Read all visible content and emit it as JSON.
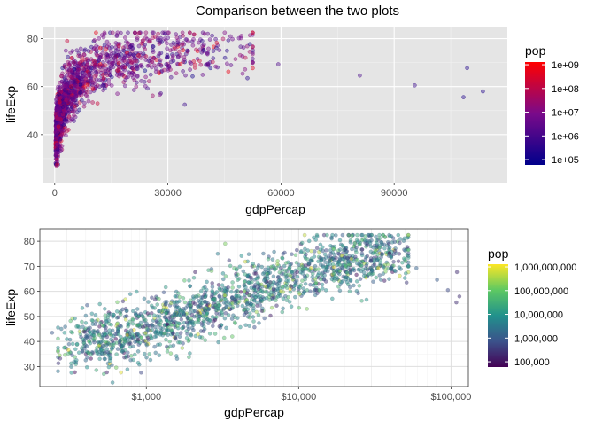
{
  "page_title": "Comparison between the two plots",
  "chart_data": [
    {
      "type": "scatter",
      "panel": "top",
      "xlabel": "gdpPercap",
      "ylabel": "lifeExp",
      "x_scale": "linear",
      "xlim": [
        -3000,
        120000
      ],
      "ylim": [
        20,
        85
      ],
      "x_ticks": [
        0,
        30000,
        60000,
        90000
      ],
      "x_tick_labels": [
        "0",
        "30000",
        "60000",
        "90000"
      ],
      "y_ticks": [
        40,
        60,
        80
      ],
      "y_tick_labels": [
        "40",
        "60",
        "80"
      ],
      "background": "#e5e5e5",
      "grid": true,
      "legend": {
        "title": "pop",
        "position": "right",
        "type": "colorbar",
        "color_low": "#00008b",
        "color_high": "#ff0000",
        "breaks": [
          100000,
          1000000,
          10000000,
          100000000,
          1000000000
        ],
        "labels": [
          "1e+05",
          "1e+06",
          "1e+07",
          "1e+08",
          "1e+09"
        ],
        "range": [
          60000,
          1300000000
        ]
      },
      "outliers": [
        {
          "x": 113523,
          "y": 58,
          "pop": 212846
        },
        {
          "x": 108382,
          "y": 55.6,
          "pop": 212846
        },
        {
          "x": 109348,
          "y": 67.7,
          "pop": 212846
        },
        {
          "x": 95458,
          "y": 60.5,
          "pop": 575003
        },
        {
          "x": 80894,
          "y": 64.6,
          "pop": 1140357
        },
        {
          "x": 59265,
          "y": 69.3,
          "pop": 1497494
        },
        {
          "x": 49357,
          "y": 80.2,
          "pop": 8199783
        },
        {
          "x": 47143,
          "y": 79.8,
          "pop": 4627926
        },
        {
          "x": 42952,
          "y": 78.2,
          "pop": 301139947
        },
        {
          "x": 36797,
          "y": 79.7,
          "pop": 6426679
        },
        {
          "x": 34481,
          "y": 52.5,
          "pop": 600000
        },
        {
          "x": 28118,
          "y": 57.2,
          "pop": 1300000
        },
        {
          "x": 23800,
          "y": 62.0,
          "pop": 800000
        },
        {
          "x": 21011,
          "y": 58.6,
          "pop": 3000000
        }
      ]
    },
    {
      "type": "scatter",
      "panel": "bottom",
      "xlabel": "gdpPercap",
      "ylabel": "lifeExp",
      "x_scale": "log10",
      "xlim": [
        200,
        130000
      ],
      "ylim": [
        22,
        85
      ],
      "x_ticks": [
        1000,
        10000,
        100000
      ],
      "x_tick_labels": [
        "$1,000",
        "$10,000",
        "$100,000"
      ],
      "y_ticks": [
        30,
        40,
        50,
        60,
        70,
        80
      ],
      "y_tick_labels": [
        "30",
        "40",
        "50",
        "60",
        "70",
        "80"
      ],
      "background": "#ffffff",
      "grid": true,
      "legend": {
        "title": "pop",
        "position": "right",
        "type": "colorbar",
        "palette": "viridis",
        "breaks": [
          100000,
          1000000,
          10000000,
          100000000,
          1000000000
        ],
        "labels": [
          "100,000",
          "1,000,000",
          "10,000,000",
          "100,000,000",
          "1,000,000,000"
        ],
        "range": [
          60000,
          1300000000
        ]
      },
      "outliers": [
        {
          "x": 113523,
          "y": 58,
          "pop": 212846
        },
        {
          "x": 108382,
          "y": 55.6,
          "pop": 212846
        },
        {
          "x": 109348,
          "y": 67.7,
          "pop": 212846
        },
        {
          "x": 95458,
          "y": 60.5,
          "pop": 575003
        },
        {
          "x": 80894,
          "y": 64.6,
          "pop": 1140357
        },
        {
          "x": 59265,
          "y": 69.3,
          "pop": 1497494
        },
        {
          "x": 241,
          "y": 43.5,
          "pop": 1000000
        },
        {
          "x": 277,
          "y": 45.0,
          "pop": 3000000
        },
        {
          "x": 600,
          "y": 23.6,
          "pop": 6000000
        },
        {
          "x": 400,
          "y": 32.5,
          "pop": 2000000
        }
      ],
      "cluster_note": "dense cloud of ~1700 points spanning gdpPercap $300-$50,000 and lifeExp 30-82"
    }
  ]
}
